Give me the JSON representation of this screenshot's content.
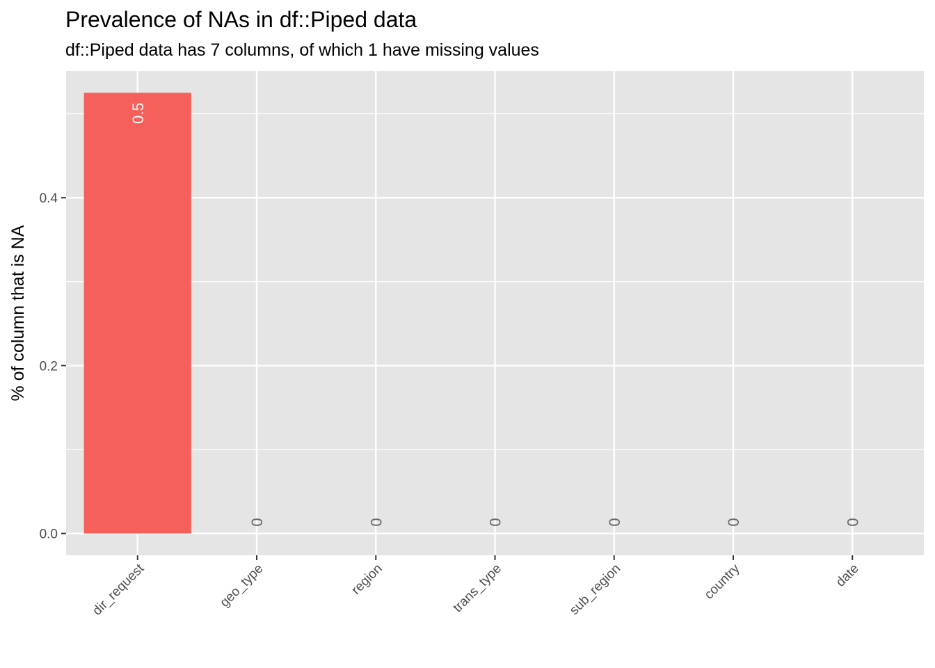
{
  "chart_data": {
    "type": "bar",
    "title": "Prevalence of NAs in df::Piped data",
    "subtitle": "df::Piped data has 7 columns, of which 1 have missing values",
    "xlabel": "",
    "ylabel": "% of column that is NA",
    "categories": [
      "dir_request",
      "geo_type",
      "region",
      "trans_type",
      "sub_region",
      "country",
      "date"
    ],
    "values": [
      0.525,
      0,
      0,
      0,
      0,
      0,
      0
    ],
    "data_labels": [
      "0.5",
      "0",
      "0",
      "0",
      "0",
      "0",
      "0"
    ],
    "ylim": [
      -0.026,
      0.551
    ],
    "yticks": [
      0.0,
      0.2,
      0.4
    ],
    "ytick_labels": [
      "0.0",
      "0.2",
      "0.4"
    ],
    "grid": true,
    "legend": "none",
    "colors": {
      "bar": "#F5605B",
      "panel": "#E5E5E5",
      "grid": "#FFFFFF",
      "label_on_bar": "#FFFFFF",
      "label_zero": "#666666"
    }
  }
}
